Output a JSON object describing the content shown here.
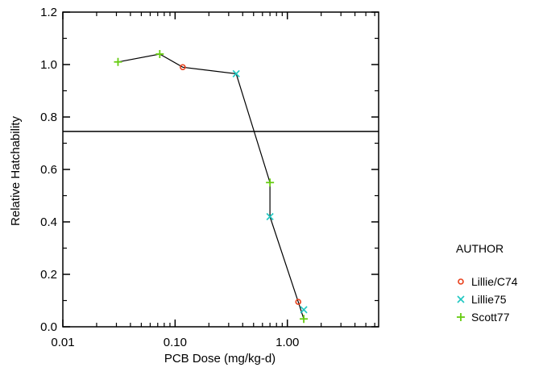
{
  "chart_data": {
    "type": "scatter",
    "xscale": "log",
    "xlabel": "PCB Dose (mg/kg-d)",
    "ylabel": "Relative Hatchability",
    "xlim": [
      0.01,
      6.5
    ],
    "ylim": [
      0,
      1.2
    ],
    "x_ticks": [
      "0.01",
      "0.10",
      "1.00"
    ],
    "x_tick_values": [
      0.01,
      0.1,
      1.0
    ],
    "y_ticks": [
      "0.0",
      "0.2",
      "0.4",
      "0.6",
      "0.8",
      "1.0",
      "1.2"
    ],
    "y_tick_values": [
      0,
      0.2,
      0.4,
      0.6,
      0.8,
      1.0,
      1.2
    ],
    "grid": false,
    "reference_line_y": 0.745,
    "legend": {
      "title": "AUTHOR",
      "placement": "right"
    },
    "series": [
      {
        "name": "Lillie/C74",
        "marker": "circle",
        "color": "#e8401c",
        "x": [
          0.117,
          1.25
        ],
        "y": [
          0.99,
          0.095
        ]
      },
      {
        "name": "Lillie75",
        "marker": "x",
        "color": "#1fc7c1",
        "x": [
          0.35,
          0.7,
          1.4
        ],
        "y": [
          0.965,
          0.42,
          0.065
        ]
      },
      {
        "name": "Scott77",
        "marker": "plus",
        "color": "#66cc11",
        "x": [
          0.031,
          0.073,
          0.7,
          1.4
        ],
        "y": [
          1.01,
          1.04,
          0.55,
          0.03
        ]
      }
    ],
    "trend_line": {
      "x": [
        0.031,
        0.073,
        0.117,
        0.35,
        0.7,
        0.7,
        1.25,
        1.4
      ],
      "y": [
        1.01,
        1.04,
        0.99,
        0.965,
        0.55,
        0.42,
        0.095,
        0.03
      ]
    }
  }
}
